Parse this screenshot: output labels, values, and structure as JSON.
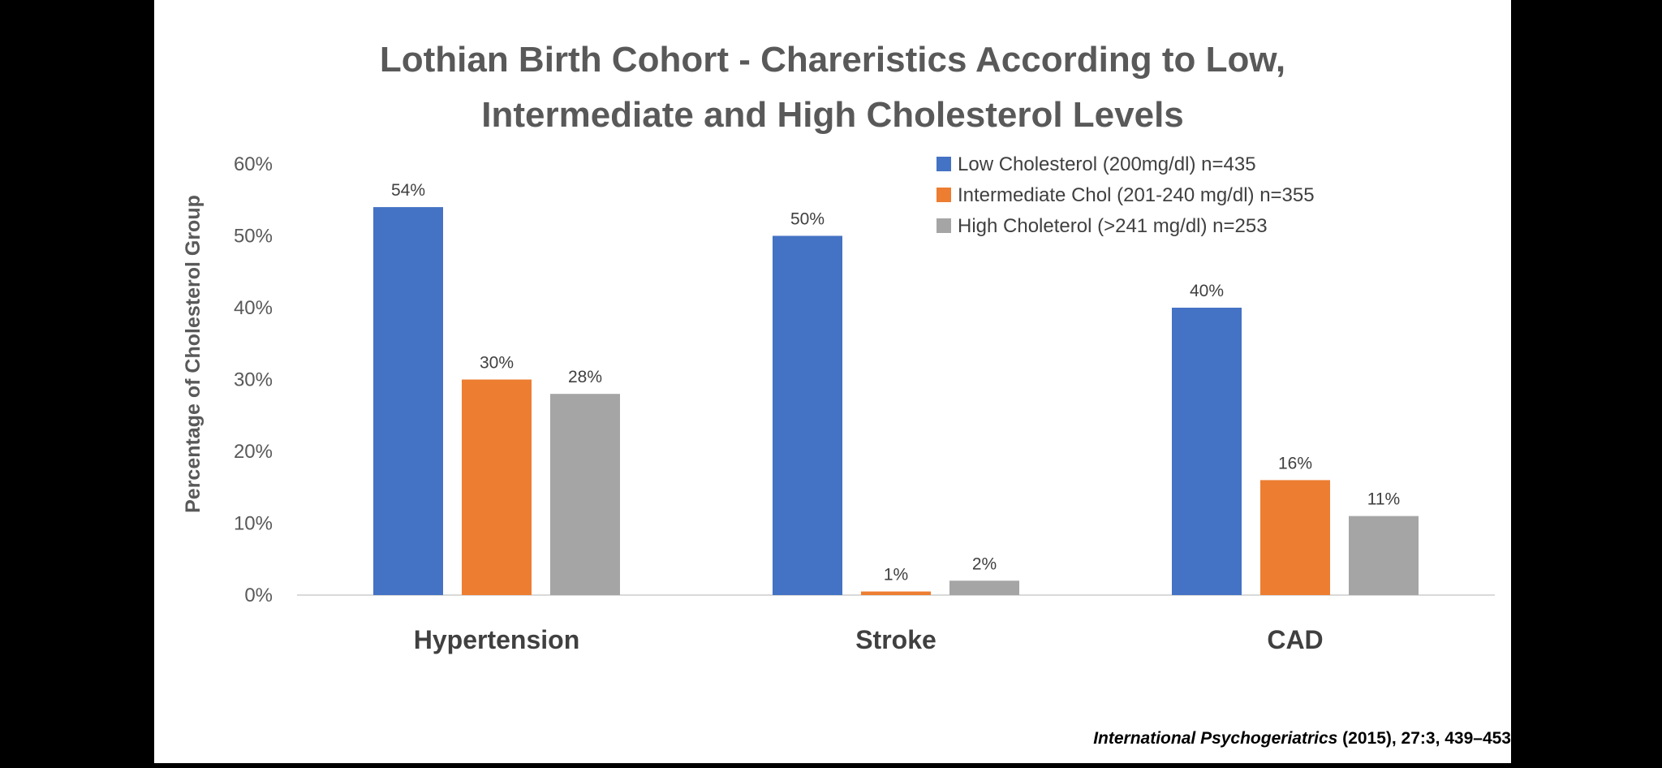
{
  "colors": {
    "background": "#ffffff",
    "outer": "#000000",
    "text": "#595959",
    "axis": "#d9d9d9"
  },
  "citation": {
    "journal": "International Psychogeriatrics",
    "details": " (2015), 27:3, 439–453"
  },
  "chart_data": {
    "type": "bar",
    "title_lines": [
      "Lothian Birth Cohort - Chareristics According to Low,",
      "Intermediate and High Cholesterol Levels"
    ],
    "ylabel": "Percentage of Cholesterol Group",
    "xlabel": "",
    "ylim": [
      0,
      60
    ],
    "yticks": [
      0,
      10,
      20,
      30,
      40,
      50,
      60
    ],
    "ytick_suffix": "%",
    "grid": false,
    "legend_position": "top-right",
    "categories": [
      "Hypertension",
      "Stroke",
      "CAD"
    ],
    "series": [
      {
        "name": "Low Cholesterol (200mg/dl)  n=435",
        "color": "#4472c4",
        "values": [
          54,
          50,
          40
        ],
        "labels": [
          "54%",
          "50%",
          "40%"
        ]
      },
      {
        "name": "Intermediate Chol (201-240 mg/dl) n=355",
        "color": "#ed7d31",
        "values": [
          30,
          0.5,
          16
        ],
        "labels": [
          "30%",
          "1%",
          "16%"
        ]
      },
      {
        "name": "High Choleterol (>241 mg/dl)  n=253",
        "color": "#a5a5a5",
        "values": [
          28,
          2,
          11
        ],
        "labels": [
          "28%",
          "2%",
          "11%"
        ]
      }
    ]
  }
}
